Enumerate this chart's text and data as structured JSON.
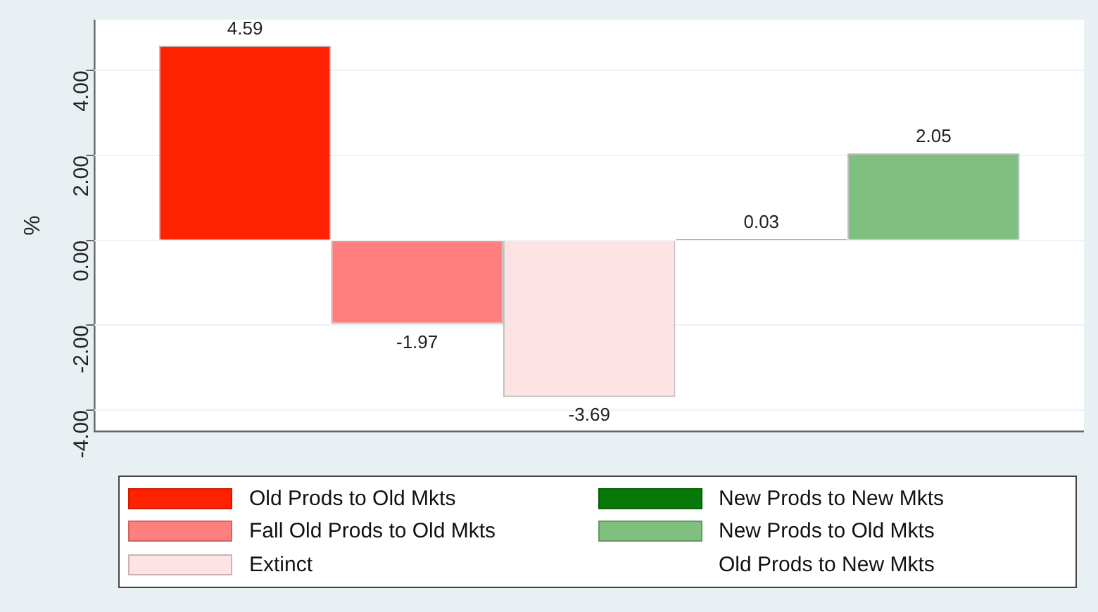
{
  "chart_data": {
    "type": "bar",
    "ylabel": "%",
    "categories": [
      null
    ],
    "series": [
      {
        "name": "Old Prods to Old Mkts",
        "color": "#ff2200",
        "values": [
          4.59
        ]
      },
      {
        "name": "Fall Old Prods to Old Mkts",
        "color": "#ff7f7f",
        "values": [
          -1.97
        ]
      },
      {
        "name": "Extinct",
        "color": "#fde3e3",
        "values": [
          -3.69
        ]
      },
      {
        "name": "New Prods to New Mkts",
        "color": "#087808",
        "values": [
          0.03
        ]
      },
      {
        "name": "New Prods to Old Mkts",
        "color": "#7fbf7f",
        "values": [
          2.05
        ]
      },
      {
        "name": "Old Prods to New Mkts",
        "values": [
          null
        ]
      }
    ],
    "ylim": [
      -4.5,
      5.2
    ],
    "yticks": [
      {
        "value": -4,
        "label": "-4.00"
      },
      {
        "value": -2,
        "label": "-2.00"
      },
      {
        "value": 0,
        "label": "0.00"
      },
      {
        "value": 2,
        "label": "2.00"
      },
      {
        "value": 4,
        "label": "4.00"
      }
    ],
    "grid": "y",
    "data_labels": true,
    "legend": "bottom"
  }
}
